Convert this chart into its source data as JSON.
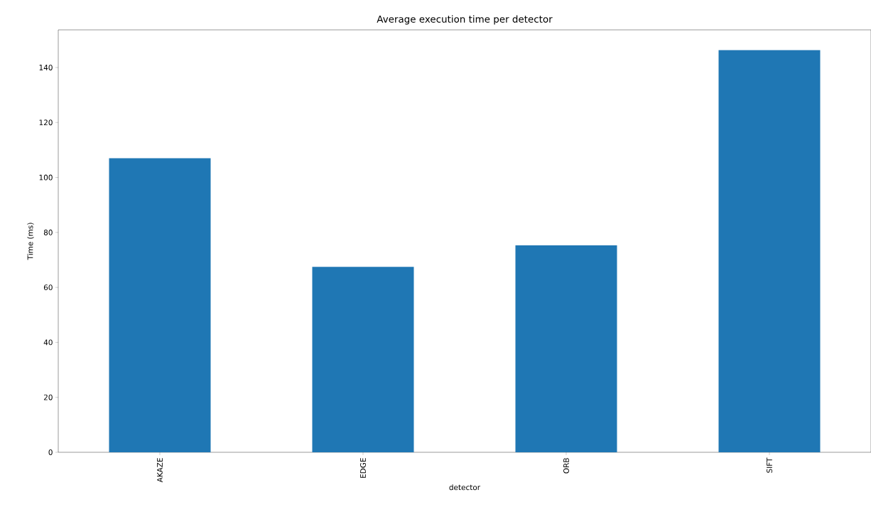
{
  "chart_data": {
    "type": "bar",
    "title": "Average execution time per detector",
    "xlabel": "detector",
    "ylabel": "Time (ms)",
    "categories": [
      "AKAZE",
      "EDGE",
      "ORB",
      "SIFT"
    ],
    "values": [
      107,
      67.5,
      75.3,
      146.3
    ],
    "color": "#1f77b4",
    "ylim": [
      0,
      153.7
    ],
    "yticks": [
      0,
      20,
      40,
      60,
      80,
      100,
      120,
      140
    ],
    "grid": false
  }
}
